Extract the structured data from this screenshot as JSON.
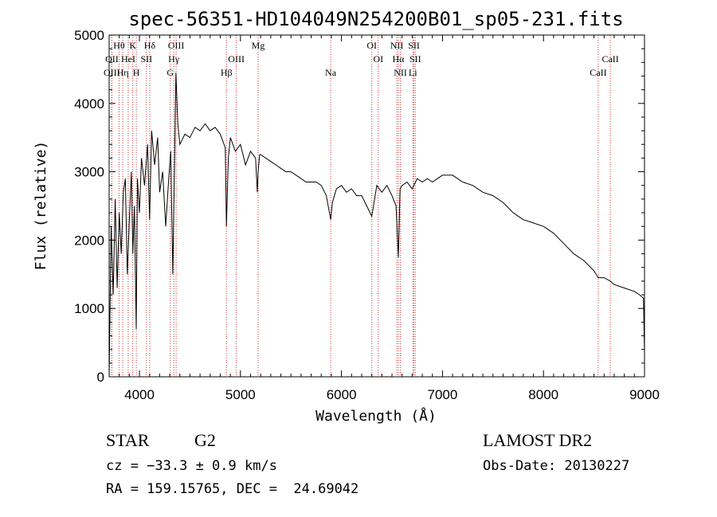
{
  "chart_data": {
    "type": "line",
    "title": "spec-56351-HD104049N254200B01_sp05-231.fits",
    "xlabel": "Wavelength (Å)",
    "ylabel": "Flux (relative)",
    "xlim": [
      3700,
      9000
    ],
    "ylim": [
      0,
      5000
    ],
    "x_ticks": [
      4000,
      5000,
      6000,
      7000,
      8000,
      9000
    ],
    "y_ticks": [
      0,
      1000,
      2000,
      3000,
      4000,
      5000
    ],
    "grid": false,
    "line_color": "#000000",
    "marker_color": "#cc3333",
    "series": [
      {
        "x": [
          3700,
          3720,
          3740,
          3760,
          3780,
          3800,
          3820,
          3840,
          3860,
          3880,
          3900,
          3920,
          3935,
          3950,
          3968,
          3980,
          4000,
          4020,
          4050,
          4080,
          4101,
          4120,
          4150,
          4180,
          4200,
          4230,
          4260,
          4290,
          4310,
          4330,
          4340,
          4361,
          4380,
          4400,
          4450,
          4500,
          4550,
          4600,
          4650,
          4700,
          4750,
          4800,
          4850,
          4861,
          4880,
          4900,
          4950,
          5000,
          5050,
          5100,
          5150,
          5167,
          5175,
          5190,
          5200,
          5250,
          5300,
          5350,
          5400,
          5450,
          5500,
          5550,
          5600,
          5650,
          5700,
          5750,
          5800,
          5850,
          5893,
          5910,
          5950,
          6000,
          6050,
          6100,
          6150,
          6200,
          6250,
          6300,
          6350,
          6400,
          6450,
          6500,
          6540,
          6563,
          6580,
          6600,
          6650,
          6700,
          6750,
          6800,
          6850,
          6900,
          6950,
          7000,
          7100,
          7200,
          7300,
          7400,
          7500,
          7600,
          7700,
          7800,
          7900,
          8000,
          8100,
          8200,
          8300,
          8400,
          8500,
          8542,
          8600,
          8662,
          8700,
          8800,
          8900,
          8950,
          8990,
          9000
        ],
        "y": [
          0,
          2200,
          1200,
          2600,
          1300,
          2400,
          1800,
          2700,
          2900,
          1500,
          2300,
          3000,
          1800,
          2500,
          700,
          2900,
          2400,
          3200,
          2800,
          3400,
          2300,
          3600,
          3100,
          3500,
          2700,
          3000,
          2200,
          2900,
          3300,
          1500,
          2400,
          4450,
          3700,
          3400,
          3550,
          3500,
          3650,
          3600,
          3700,
          3600,
          3650,
          3550,
          3350,
          2200,
          3200,
          3500,
          3300,
          3400,
          3100,
          3300,
          3200,
          2700,
          3000,
          3250,
          3250,
          3200,
          3150,
          3100,
          3050,
          3000,
          3000,
          2950,
          2900,
          2850,
          2850,
          2850,
          2800,
          2650,
          2300,
          2550,
          2750,
          2800,
          2700,
          2750,
          2650,
          2650,
          2500,
          2350,
          2800,
          2700,
          2800,
          2650,
          2500,
          1750,
          2750,
          2800,
          2850,
          2750,
          2900,
          2850,
          2900,
          2850,
          2900,
          2950,
          2950,
          2850,
          2800,
          2700,
          2650,
          2550,
          2400,
          2300,
          2250,
          2200,
          2100,
          1950,
          1800,
          1700,
          1550,
          1450,
          1450,
          1400,
          1350,
          1300,
          1250,
          1200,
          1150,
          350
        ]
      }
    ],
    "line_markers": [
      {
        "label": "Hθ",
        "x": 3798,
        "row": 0
      },
      {
        "label": "OII",
        "x": 3727,
        "row": 1
      },
      {
        "label": "OIII",
        "x": 3726,
        "row": 2
      },
      {
        "label": "Hη",
        "x": 3835,
        "row": 2
      },
      {
        "label": "HeI",
        "x": 3889,
        "row": 1
      },
      {
        "label": "K",
        "x": 3934,
        "row": 0
      },
      {
        "label": "SII",
        "x": 4069,
        "row": 1
      },
      {
        "label": "H",
        "x": 3969,
        "row": 2
      },
      {
        "label": "Hδ",
        "x": 4102,
        "row": 0
      },
      {
        "label": "OIII",
        "x": 4363,
        "row": 0
      },
      {
        "label": "Hγ",
        "x": 4340,
        "row": 1
      },
      {
        "label": "G",
        "x": 4305,
        "row": 2
      },
      {
        "label": "OIII",
        "x": 4959,
        "row": 1
      },
      {
        "label": "Hβ",
        "x": 4861,
        "row": 2
      },
      {
        "label": "Mg",
        "x": 5175,
        "row": 0
      },
      {
        "label": "Na",
        "x": 5893,
        "row": 2
      },
      {
        "label": "OI",
        "x": 6300,
        "row": 0
      },
      {
        "label": "OI",
        "x": 6364,
        "row": 1
      },
      {
        "label": "NII",
        "x": 6548,
        "row": 0
      },
      {
        "label": "NII",
        "x": 6583,
        "row": 2
      },
      {
        "label": "Hα",
        "x": 6563,
        "row": 1
      },
      {
        "label": "SII",
        "x": 6717,
        "row": 0
      },
      {
        "label": "SII",
        "x": 6731,
        "row": 1
      },
      {
        "label": "Li",
        "x": 6707,
        "row": 2
      },
      {
        "label": "CaII",
        "x": 8662,
        "row": 1
      },
      {
        "label": "CaII",
        "x": 8542,
        "row": 2
      }
    ]
  },
  "info": {
    "object_type": "STAR",
    "subclass": "G2",
    "survey": "LAMOST DR2",
    "redshift": "cz = −33.3 ± 0.9 km/s",
    "obs_date": "Obs-Date: 20130227",
    "coords": "RA = 159.15765, DEC =  24.69042"
  }
}
